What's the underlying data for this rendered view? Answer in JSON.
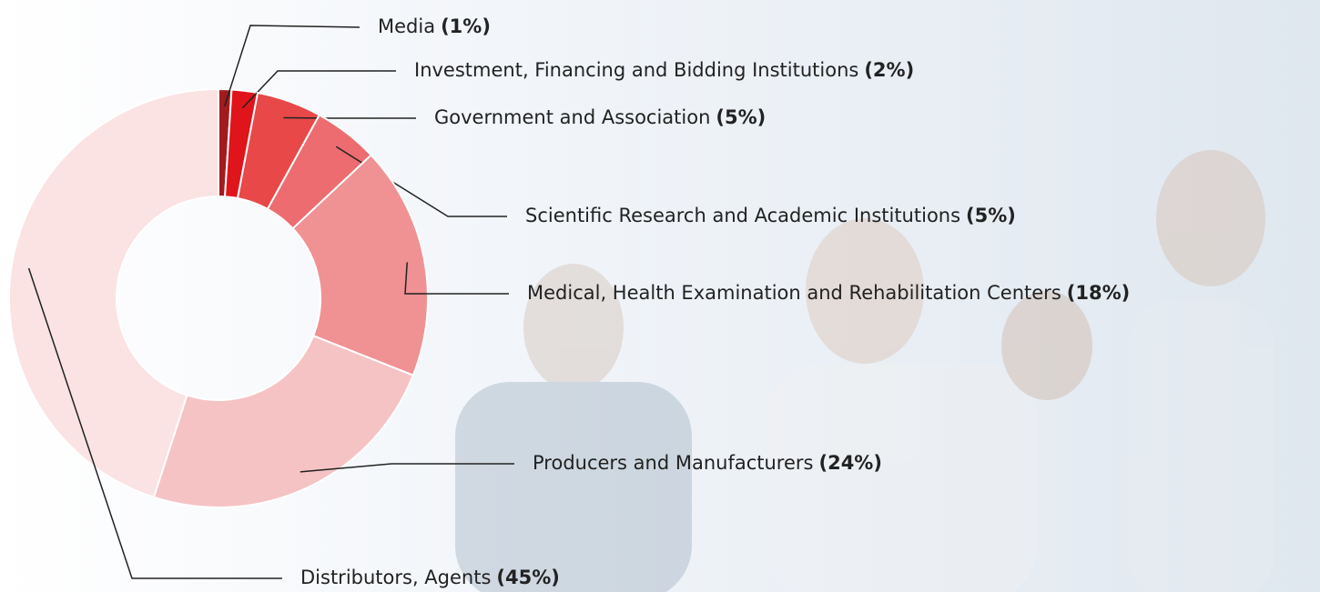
{
  "chart_data": {
    "type": "pie",
    "donut": true,
    "categories": [
      "Media",
      "Investment, Financing and Bidding Institutions",
      "Government and Association",
      "Scientific Research and Academic Institutions",
      "Medical, Health Examination and Rehabilitation Centers",
      "Producers and Manufacturers",
      "Distributors, Agents"
    ],
    "values": [
      1,
      2,
      5,
      5,
      18,
      24,
      45
    ],
    "value_labels": [
      "(1%)",
      "(2%)",
      "(5%)",
      "(5%)",
      "(18%)",
      "(24%)",
      "(45%)"
    ],
    "colors": [
      "#a11b1f",
      "#e0141b",
      "#e84848",
      "#ec6c6f",
      "#f09194",
      "#f6c3c5",
      "#fbe2e3"
    ]
  }
}
